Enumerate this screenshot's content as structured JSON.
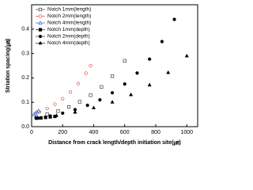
{
  "chart_data": {
    "type": "scatter",
    "x_label": "Distance from crack length/depth initiation site(㎛)",
    "y_label": "Striation spacing(㎛)",
    "xlim": [
      0,
      1070
    ],
    "xticks": [
      0,
      200,
      400,
      600,
      800,
      1000
    ],
    "ylim": [
      0,
      0.5
    ],
    "yticks": [
      {
        "value": 0,
        "label": "0.0"
      },
      {
        "value": 0.1,
        "label": "0.1"
      },
      {
        "value": 0.2,
        "label": "0.2"
      },
      {
        "value": 0.3,
        "label": "0.3"
      },
      {
        "value": 0.4,
        "label": "0.4"
      }
    ],
    "legend": "upper left",
    "series": [
      {
        "name": "Notch 1mm(length)",
        "color": "#222222",
        "marker": "square",
        "filled": false,
        "x": [
          30,
          100,
          170,
          240,
          310,
          380,
          450,
          520,
          600
        ],
        "values": [
          0.04,
          0.0506,
          0.0639,
          0.0808,
          0.1021,
          0.129,
          0.163,
          0.207,
          0.27
        ]
      },
      {
        "name": "Notch 2mm(length)",
        "color": "#e03030",
        "marker": "circle",
        "filled": false,
        "x": [
          50,
          100,
          150,
          200,
          250,
          300,
          350,
          380
        ],
        "values": [
          0.06,
          0.0745,
          0.0924,
          0.1147,
          0.1423,
          0.1766,
          0.2192,
          0.25
        ]
      },
      {
        "name": "Notch 4mm(length)",
        "color": "#2040d0",
        "marker": "triangle",
        "filled": false,
        "x": [
          15,
          25,
          35,
          45
        ],
        "values": [
          0.05,
          0.055,
          0.06,
          0.065
        ]
      },
      {
        "name": "Notch 1mm(depth)",
        "color": "#000000",
        "marker": "square",
        "filled": true,
        "x": [
          30,
          60,
          90,
          120,
          150
        ],
        "values": [
          0.035,
          0.036,
          0.038,
          0.04,
          0.042
        ]
      },
      {
        "name": "Notch 2mm(depth)",
        "color": "#000000",
        "marker": "circle",
        "filled": true,
        "x": [
          40,
          120,
          200,
          280,
          360,
          440,
          520,
          600,
          680,
          760,
          840,
          920
        ],
        "values": [
          0.035,
          0.044,
          0.0554,
          0.0697,
          0.0877,
          0.11,
          0.139,
          0.175,
          0.22,
          0.277,
          0.349,
          0.44
        ]
      },
      {
        "name": "Notch 4mm(depth)",
        "color": "#000000",
        "marker": "triangle",
        "filled": true,
        "x": [
          40,
          160,
          280,
          400,
          520,
          640,
          760,
          880,
          1000
        ],
        "values": [
          0.035,
          0.0456,
          0.0594,
          0.0773,
          0.1006,
          0.131,
          0.171,
          0.222,
          0.29
        ]
      }
    ]
  }
}
